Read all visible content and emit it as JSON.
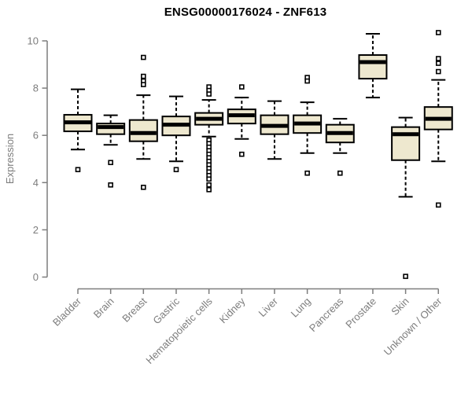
{
  "chart_data": {
    "type": "boxplot",
    "title": "ENSG00000176024 - ZNF613",
    "xlabel": "",
    "ylabel": "Expression",
    "ylim": [
      0,
      10.4
    ],
    "yticks": [
      0,
      2,
      4,
      6,
      8,
      10
    ],
    "grid": false,
    "legend": "none",
    "colors": {
      "box_fill": "#EEE8CF",
      "box_border": "#000000",
      "median": "#000000",
      "whisker": "#000000",
      "axis": "#7D7D7D",
      "tick_label": "#7D7D7D",
      "title": "#000000"
    },
    "categories": [
      "Bladder",
      "Brain",
      "Breast",
      "Gastric",
      "Hematopoietic cells",
      "Kidney",
      "Liver",
      "Lung",
      "Pancreas",
      "Prostate",
      "Skin",
      "Unknown / Other"
    ],
    "series": [
      {
        "label": "Bladder",
        "whislo": 5.4,
        "q1": 6.17,
        "med": 6.55,
        "q3": 6.87,
        "whishi": 7.95,
        "outliers": [
          4.55
        ]
      },
      {
        "label": "Brain",
        "whislo": 5.6,
        "q1": 6.05,
        "med": 6.35,
        "q3": 6.5,
        "whishi": 6.85,
        "outliers": [
          4.85,
          3.9
        ]
      },
      {
        "label": "Breast",
        "whislo": 5.0,
        "q1": 5.75,
        "med": 6.1,
        "q3": 6.65,
        "whishi": 7.7,
        "outliers": [
          9.3,
          8.5,
          8.3,
          8.15,
          3.8
        ]
      },
      {
        "label": "Gastric",
        "whislo": 4.9,
        "q1": 6.0,
        "med": 6.45,
        "q3": 6.8,
        "whishi": 7.65,
        "outliers": [
          4.55
        ]
      },
      {
        "label": "Hematopoietic cells",
        "whislo": 5.95,
        "q1": 6.45,
        "med": 6.7,
        "q3": 6.95,
        "whishi": 7.5,
        "outliers": [
          8.05,
          7.9,
          7.75,
          5.8,
          5.65,
          5.5,
          5.35,
          5.2,
          5.05,
          4.9,
          4.75,
          4.6,
          4.45,
          4.3,
          4.15,
          3.9,
          3.7
        ]
      },
      {
        "label": "Kidney",
        "whislo": 5.85,
        "q1": 6.5,
        "med": 6.85,
        "q3": 7.1,
        "whishi": 7.6,
        "outliers": [
          8.05,
          5.2
        ]
      },
      {
        "label": "Liver",
        "whislo": 5.0,
        "q1": 6.05,
        "med": 6.4,
        "q3": 6.85,
        "whishi": 7.45,
        "outliers": []
      },
      {
        "label": "Lung",
        "whislo": 5.25,
        "q1": 6.1,
        "med": 6.5,
        "q3": 6.85,
        "whishi": 7.4,
        "outliers": [
          8.45,
          8.3,
          4.4
        ]
      },
      {
        "label": "Pancreas",
        "whislo": 5.25,
        "q1": 5.7,
        "med": 6.1,
        "q3": 6.45,
        "whishi": 6.7,
        "outliers": [
          4.4
        ]
      },
      {
        "label": "Prostate",
        "whislo": 7.6,
        "q1": 8.4,
        "med": 9.1,
        "q3": 9.4,
        "whishi": 10.3,
        "outliers": []
      },
      {
        "label": "Skin",
        "whislo": 3.4,
        "q1": 4.95,
        "med": 6.05,
        "q3": 6.35,
        "whishi": 6.75,
        "outliers": [
          0.03
        ]
      },
      {
        "label": "Unknown / Other",
        "whislo": 4.9,
        "q1": 6.25,
        "med": 6.7,
        "q3": 7.2,
        "whishi": 8.35,
        "outliers": [
          10.35,
          9.25,
          9.05,
          8.7,
          3.05
        ]
      }
    ]
  }
}
